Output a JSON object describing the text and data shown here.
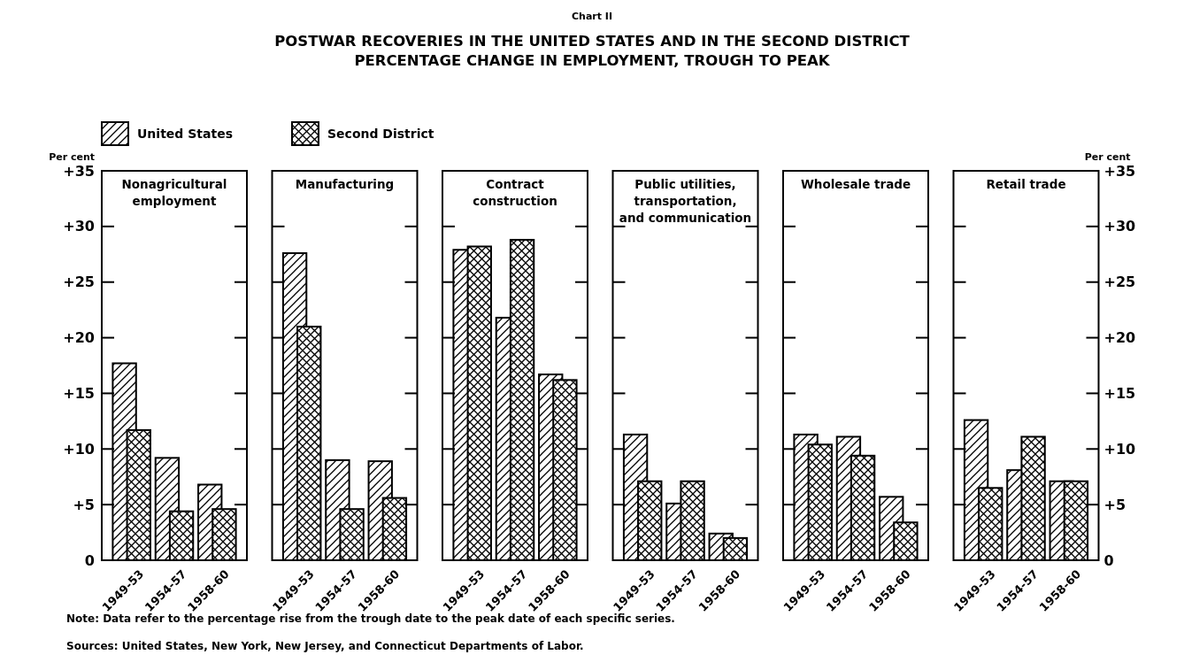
{
  "chart_data": [
    {
      "type": "bar",
      "title": "Nonagricultural employment",
      "ylabel": "Per cent",
      "categories": [
        "1949-53",
        "1954-57",
        "1958-60"
      ],
      "series": [
        {
          "name": "United States",
          "color": "#000000",
          "values": [
            17.7,
            9.2,
            6.8
          ]
        },
        {
          "name": "Second District",
          "color": "#000000",
          "values": [
            11.7,
            4.4,
            4.6
          ]
        }
      ],
      "ylim": [
        0,
        35
      ],
      "yticks": [
        0,
        {
          "value": 5,
          "label": "+5"
        },
        {
          "value": 10,
          "label": "+10"
        },
        {
          "value": 15,
          "label": "+15"
        },
        {
          "value": 20,
          "label": "+20"
        },
        {
          "value": 25,
          "label": "+25"
        },
        {
          "value": 30,
          "label": "+30"
        },
        {
          "value": 35,
          "label": "+35"
        }
      ],
      "legend": "top",
      "annotations": [
        "Chart II",
        "POSTWAR RECOVERIES IN THE UNITED STATES AND IN THE SECOND DISTRICT",
        "PERCENTAGE CHANGE IN EMPLOYMENT, TROUGH TO PEAK",
        "Note: Data refer to the percentage rise from the trough date to the peak date of each specific series.",
        "Sources: United States, New York, New Jersey, and Connecticut Departments of Labor."
      ]
    },
    {
      "type": "bar",
      "title": "Manufacturing",
      "categories": [
        "1949-53",
        "1954-57",
        "1958-60"
      ],
      "series": [
        {
          "color": "#000000",
          "values": [
            27.6,
            9.0,
            8.9
          ]
        },
        {
          "color": "#000000",
          "values": [
            21.0,
            4.6,
            5.6
          ]
        }
      ],
      "ylim": [
        0,
        35
      ],
      "yticks": [
        0,
        5,
        10,
        15,
        20,
        25,
        30,
        35
      ],
      "tick_labels": "x"
    },
    {
      "type": "bar",
      "title": "Contract construction",
      "categories": [
        "1949-53",
        "1954-57",
        "1958-60"
      ],
      "series": [
        {
          "color": "#000000",
          "values": [
            27.9,
            21.8,
            16.7
          ]
        },
        {
          "color": "#000000",
          "values": [
            28.2,
            28.8,
            16.2
          ]
        }
      ],
      "ylim": [
        0,
        35
      ],
      "yticks": [
        0,
        5,
        10,
        15,
        20,
        25,
        30,
        35
      ],
      "tick_labels": "x"
    },
    {
      "type": "bar",
      "title": "Public utilities, transportation, and communication",
      "categories": [
        "1949-53",
        "1954-57",
        "1958-60"
      ],
      "series": [
        {
          "color": "#000000",
          "values": [
            11.3,
            5.1,
            2.4
          ]
        },
        {
          "color": "#000000",
          "values": [
            7.1,
            7.1,
            2.0
          ]
        }
      ],
      "ylim": [
        0,
        35
      ],
      "yticks": [
        0,
        5,
        10,
        15,
        20,
        25,
        30,
        35
      ],
      "tick_labels": "x"
    },
    {
      "type": "bar",
      "title": "Wholesale trade",
      "categories": [
        "1949-53",
        "1954-57",
        "1958-60"
      ],
      "series": [
        {
          "color": "#000000",
          "values": [
            11.3,
            11.1,
            5.7
          ]
        },
        {
          "color": "#000000",
          "values": [
            10.4,
            9.4,
            3.4
          ]
        }
      ],
      "ylim": [
        0,
        35
      ],
      "yticks": [
        0,
        5,
        10,
        15,
        20,
        25,
        30,
        35
      ],
      "tick_labels": "x"
    },
    {
      "type": "bar",
      "title": "Retail trade",
      "y2label": "Per cent",
      "categories": [
        "1949-53",
        "1954-57",
        "1958-60"
      ],
      "series": [
        {
          "color": "#000000",
          "values": [
            12.6,
            8.1,
            7.1
          ],
          "axis": "y2"
        },
        {
          "color": "#000000",
          "values": [
            6.5,
            11.1,
            7.1
          ],
          "axis": "y2"
        }
      ],
      "y2lim": [
        0,
        35
      ],
      "y2ticks": [
        0,
        {
          "value": 5,
          "label": "+5"
        },
        {
          "value": 10,
          "label": "+10"
        },
        {
          "value": 15,
          "label": "+15"
        },
        {
          "value": 20,
          "label": "+20"
        },
        {
          "value": 25,
          "label": "+25"
        },
        {
          "value": 30,
          "label": "+30"
        },
        {
          "value": 35,
          "label": "+35"
        }
      ]
    }
  ]
}
